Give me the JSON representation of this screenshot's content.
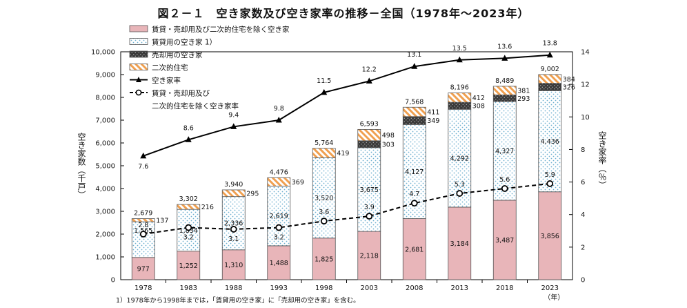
{
  "title": "図２－１　空き家数及び空き家率の推移－全国（1978年～2023年）",
  "note": "1）1978年から1998年までは，「賃貸用の空き家」に「売却用の空き家」を含む。",
  "colors": {
    "other": "#e8b5b9",
    "rental_dots": "#6fb0d0",
    "sale": "#444444",
    "second_home": "#f0a050",
    "line": "#000000"
  },
  "chart_data": {
    "type": "bar",
    "stacked": true,
    "title": "図２－１　空き家数及び空き家率の推移－全国（1978年～2023年）",
    "categories": [
      "1978",
      "1983",
      "1988",
      "1993",
      "1998",
      "2003",
      "2008",
      "2013",
      "2018",
      "2023"
    ],
    "ylabel": "空き家数（千戸）",
    "y2label": "空き家率（％）",
    "xlabel_unit": "（年）",
    "ylim": [
      0,
      10000
    ],
    "y2lim": [
      0,
      14
    ],
    "yticks": [
      "0",
      "1,000",
      "2,000",
      "3,000",
      "4,000",
      "5,000",
      "6,000",
      "7,000",
      "8,000",
      "9,000",
      "10,000"
    ],
    "y2ticks": [
      "0",
      "2",
      "4",
      "6",
      "8",
      "10",
      "12",
      "14"
    ],
    "series": [
      {
        "name": "賃貸・売却用及び二次的住宅を除く空き家",
        "kind": "bar",
        "values": [
          977,
          1252,
          1310,
          1488,
          1825,
          2118,
          2681,
          3184,
          3487,
          3856
        ],
        "labels": [
          "977",
          "1,252",
          "1,310",
          "1,488",
          "1,825",
          "2,118",
          "2,681",
          "3,184",
          "3,487",
          "3,856"
        ]
      },
      {
        "name": "賃貸用の空き家 1）",
        "kind": "bar",
        "values": [
          1565,
          1834,
          2336,
          2619,
          3520,
          3675,
          4127,
          4292,
          4327,
          4436
        ],
        "labels": [
          "1,565",
          "1,834",
          "2,336",
          "2,619",
          "3,520",
          "3,675",
          "4,127",
          "4,292",
          "4,327",
          "4,436"
        ]
      },
      {
        "name": "売却用の空き家",
        "kind": "bar",
        "values": [
          0,
          0,
          0,
          0,
          0,
          303,
          349,
          308,
          293,
          326
        ],
        "labels": [
          "",
          "",
          "",
          "",
          "",
          "303",
          "349",
          "308",
          "293",
          "326"
        ]
      },
      {
        "name": "二次的住宅",
        "kind": "bar",
        "values": [
          137,
          216,
          295,
          369,
          419,
          498,
          411,
          412,
          381,
          384
        ],
        "labels": [
          "137",
          "216",
          "295",
          "369",
          "419",
          "498",
          "411",
          "412",
          "381",
          "384"
        ]
      },
      {
        "name": "空き家率",
        "kind": "line",
        "axis": "right",
        "values": [
          7.6,
          8.6,
          9.4,
          9.8,
          11.5,
          12.2,
          13.1,
          13.5,
          13.6,
          13.8
        ],
        "labels": [
          "7.6",
          "8.6",
          "9.4",
          "9.8",
          "11.5",
          "12.2",
          "13.1",
          "13.5",
          "13.6",
          "13.8"
        ]
      },
      {
        "name": "賃貸・売却用及び二次的住宅を除く空き家率",
        "kind": "line",
        "axis": "right",
        "values": [
          2.8,
          3.2,
          3.1,
          3.2,
          3.6,
          3.9,
          4.7,
          5.3,
          5.6,
          5.9
        ],
        "labels": [
          "2.8",
          "3.2",
          "3.1",
          "3.2",
          "3.6",
          "3.9",
          "4.7",
          "5.3",
          "5.6",
          "5.9"
        ]
      }
    ],
    "totals": [
      2679,
      3302,
      3940,
      4476,
      5764,
      6593,
      7568,
      8196,
      8489,
      9002
    ],
    "total_labels": [
      "2,679",
      "3,302",
      "3,940",
      "4,476",
      "5,764",
      "6,593",
      "7,568",
      "8,196",
      "8,489",
      "9,002"
    ],
    "legend": {
      "position": "top-left",
      "entries": [
        "賃貸・売却用及び二次的住宅を除く空き家",
        "賃貸用の空き家 1）",
        "売却用の空き家",
        "二次的住宅",
        "空き家率",
        "賃貸・売却用及び",
        "二次的住宅を除く空き家率"
      ]
    },
    "grid": false
  }
}
